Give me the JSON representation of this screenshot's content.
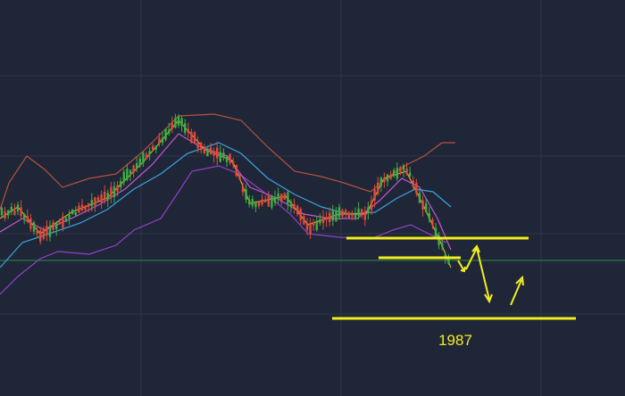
{
  "annotation": "1987"
}
